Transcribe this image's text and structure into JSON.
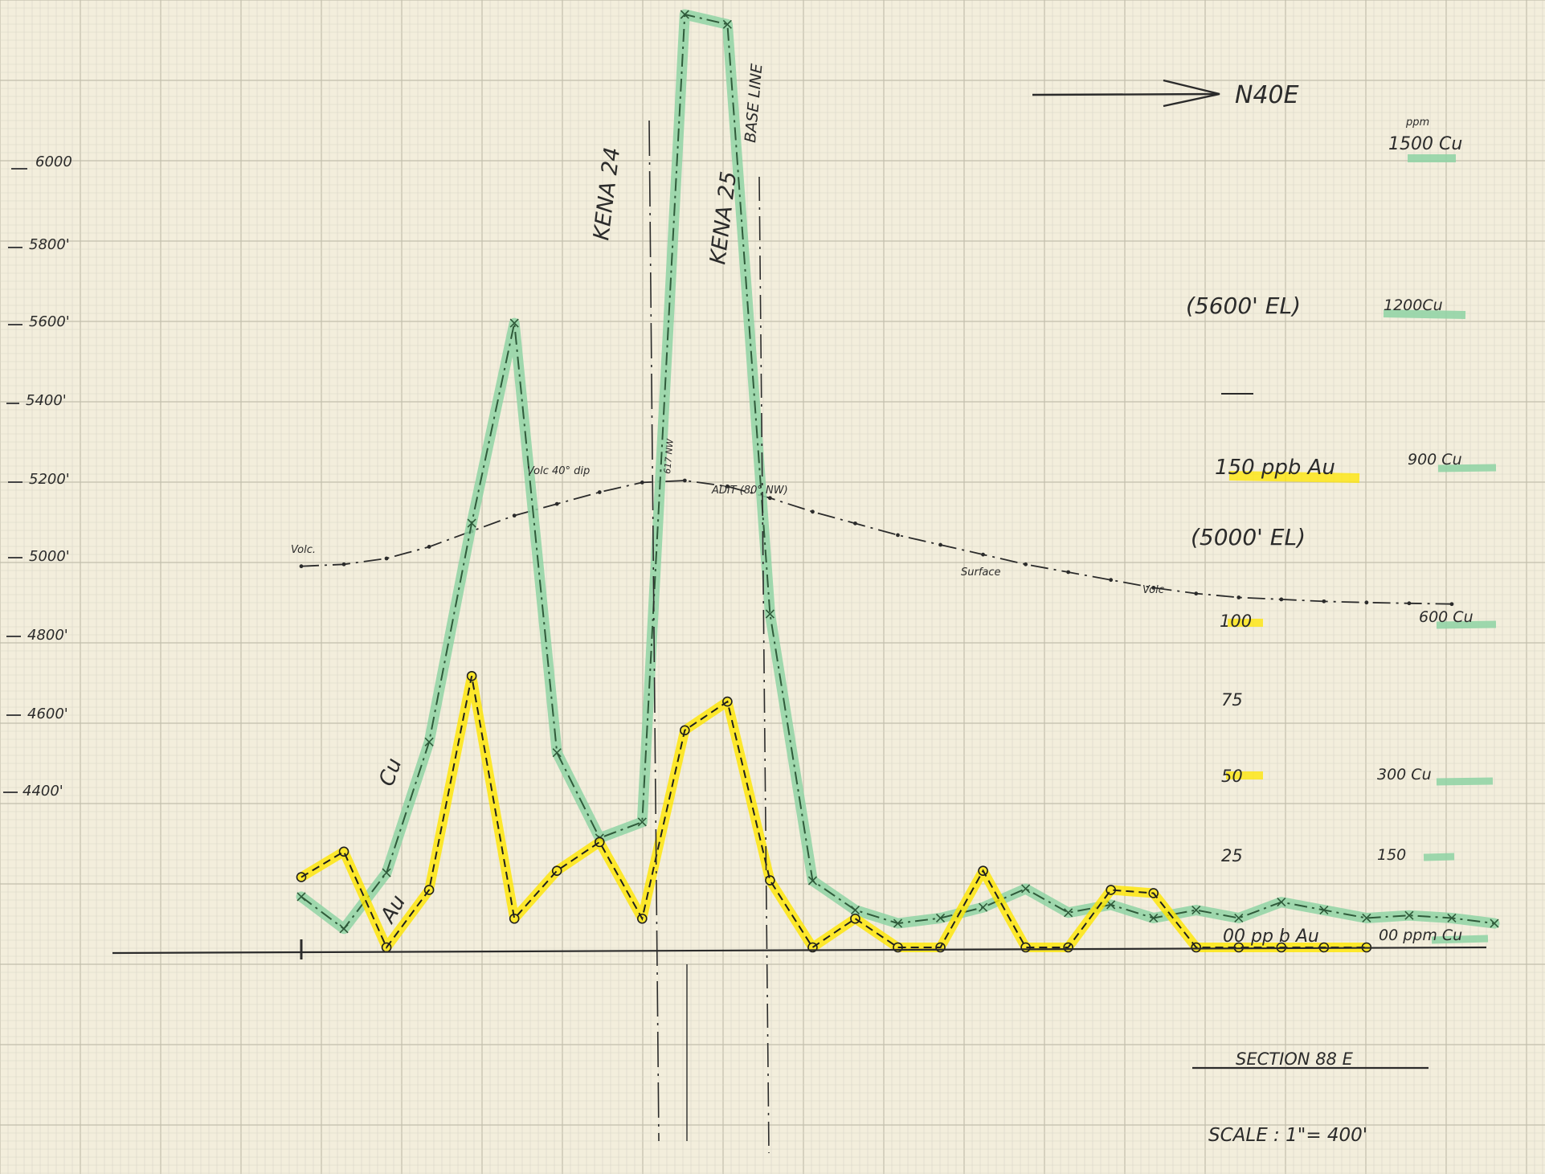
{
  "colors": {
    "paper": "#f3eedc",
    "grid_minor": "#d9d6c6",
    "grid_major": "#c2beac",
    "ink": "#2b2b2b",
    "cu_highlight": "#8fd3a4",
    "cu_line": "#2f5a3a",
    "au_highlight": "#ffe600",
    "au_line": "#1f1f1f"
  },
  "chart_data": {
    "type": "line",
    "x_unit": "ft",
    "direction_label": "N40E",
    "title": "SECTION 88 E",
    "scale_label": "SCALE : 1\"= 400'",
    "elevation_axis": {
      "ticks": [
        "6000",
        "5800'",
        "5600'",
        "5400'",
        "5200'",
        "5000'",
        "4800'",
        "4600'",
        "4400'"
      ],
      "values": [
        6000,
        5800,
        5600,
        5400,
        5200,
        5000,
        4800,
        4600,
        4400
      ]
    },
    "au_axis": {
      "ticks": [
        "150 ppb Au",
        "100",
        "75",
        "50",
        "25",
        "00 pp b Au"
      ],
      "values": [
        150,
        100,
        75,
        50,
        25,
        0
      ]
    },
    "cu_axis": {
      "ticks": [
        "1500 Cu",
        "1200Cu",
        "900 Cu",
        "600 Cu",
        "300 Cu",
        "150",
        "00 ppm Cu"
      ],
      "values": [
        1500,
        1200,
        900,
        600,
        300,
        150,
        0
      ],
      "unit_label": "ppm"
    },
    "elevation_notes": [
      "(5600' EL)",
      "(5000' EL)"
    ],
    "annotations": [
      "Volc.",
      "Volc 40° dip",
      "ADIT (80° NW)",
      "Surface",
      "Volc",
      "617 NW"
    ],
    "vertical_markers": [
      "KENA 24",
      "KENA 25",
      "BASE LINE"
    ],
    "series": [
      {
        "name": "Cu",
        "unit": "ppm",
        "x": [
          0,
          200,
          400,
          600,
          800,
          1000,
          1200,
          1400,
          1600,
          1800,
          2000,
          2200,
          2400,
          2600,
          2800,
          3000,
          3200,
          3400,
          3600,
          3800,
          4000,
          4200,
          4400,
          4600,
          4800,
          5000,
          5200,
          5400,
          5600
        ],
        "values": [
          95,
          35,
          140,
          385,
          795,
          1170,
          365,
          205,
          235,
          1780,
          1730,
          625,
          125,
          70,
          45,
          55,
          75,
          110,
          65,
          80,
          55,
          70,
          55,
          85,
          70,
          55,
          60,
          55,
          45
        ]
      },
      {
        "name": "Au",
        "unit": "ppb",
        "x": [
          0,
          200,
          400,
          600,
          800,
          1000,
          1200,
          1400,
          1600,
          1800,
          2000,
          2200,
          2400,
          2600,
          2800,
          3000,
          3200,
          3400,
          3600,
          3800,
          4000,
          4200,
          4400,
          4600,
          4800,
          5000
        ],
        "values": [
          22,
          30,
          0,
          18,
          85,
          9,
          24,
          33,
          9,
          68,
          77,
          21,
          0,
          9,
          0,
          0,
          24,
          0,
          0,
          18,
          17,
          0,
          0,
          0,
          0,
          0
        ]
      },
      {
        "name": "Surface",
        "unit": "ft",
        "x": [
          0,
          200,
          400,
          600,
          800,
          1000,
          1200,
          1400,
          1600,
          1800,
          2000,
          2200,
          2400,
          2600,
          2800,
          3000,
          3200,
          3400,
          3600,
          3800,
          4000,
          4200,
          4400,
          4600,
          4800,
          5000,
          5200,
          5400
        ],
        "values": [
          4980,
          4985,
          5000,
          5030,
          5070,
          5110,
          5140,
          5170,
          5195,
          5200,
          5185,
          5155,
          5120,
          5090,
          5060,
          5035,
          5010,
          4985,
          4965,
          4945,
          4925,
          4910,
          4900,
          4895,
          4890,
          4887,
          4885,
          4883
        ]
      }
    ]
  }
}
